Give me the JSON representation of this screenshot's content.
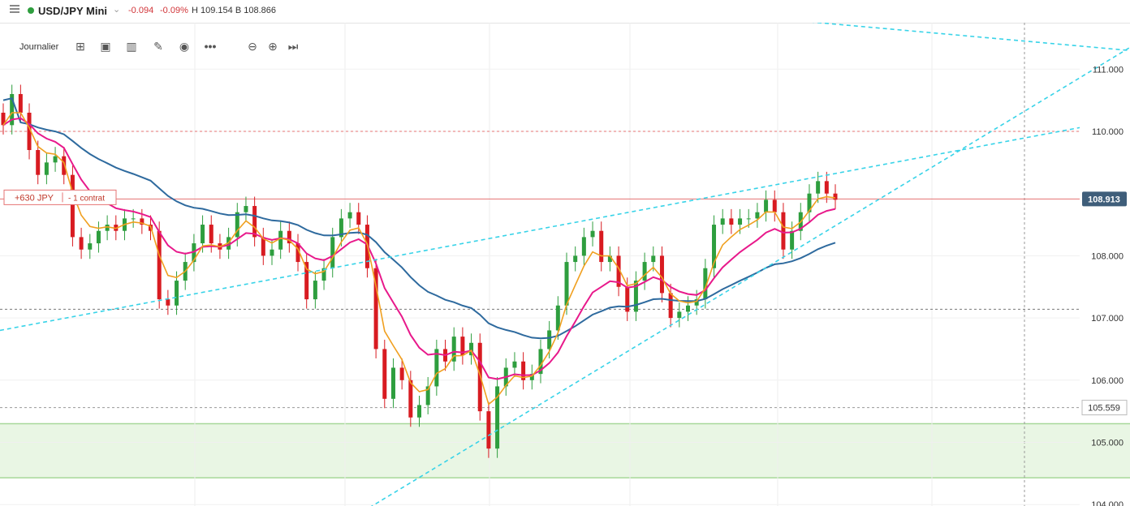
{
  "header": {
    "symbol": "USD/JPY Mini",
    "change": "-0.094",
    "change_pct": "-0.09%",
    "high_low": "H 109.154  B 108.866"
  },
  "toolbar": {
    "period": "Journalier",
    "icons": [
      "crosshair-icon",
      "layout-icon",
      "bars-icon",
      "pencil-icon",
      "eye-icon",
      "more-icon",
      "zoom-out-icon",
      "zoom-in-icon",
      "scroll-end-icon"
    ]
  },
  "position": {
    "pnl": "+630 JPY",
    "size": "- 1 contrat",
    "level": 108.913
  },
  "price_labels": {
    "current": "108.913",
    "support": "105.559"
  },
  "colors": {
    "up": "#2e9e3e",
    "down": "#d81b21",
    "ema_fast": "#f0a020",
    "ema_mid": "#e8198b",
    "ema_slow": "#2e6a9e",
    "trend": "#38d3e8",
    "zone": "#e9f6e4"
  },
  "chart_data": {
    "type": "candlestick",
    "y_axis_ticks": [
      "111.000",
      "110.000",
      "108.000",
      "107.000",
      "106.000",
      "105.000",
      "104.000"
    ],
    "ylim": [
      104.0,
      111.4
    ],
    "horizontal_levels": [
      110.0,
      108.913,
      107.14,
      105.559
    ],
    "support_zone": [
      104.43,
      105.3
    ],
    "candles_close": [
      110.1,
      110.6,
      110.3,
      109.7,
      109.3,
      109.5,
      109.6,
      109.3,
      108.3,
      108.1,
      108.2,
      108.4,
      108.5,
      108.4,
      108.6,
      108.6,
      108.5,
      108.4,
      107.3,
      107.2,
      107.6,
      107.9,
      108.2,
      108.5,
      108.2,
      108.1,
      108.3,
      108.7,
      108.8,
      108.3,
      108.0,
      108.1,
      108.4,
      108.2,
      107.9,
      107.3,
      107.6,
      107.8,
      108.3,
      108.6,
      108.7,
      108.5,
      107.8,
      106.5,
      105.7,
      106.2,
      106.0,
      105.4,
      105.6,
      105.9,
      106.5,
      106.3,
      106.7,
      106.4,
      106.6,
      105.5,
      104.9,
      105.9,
      106.2,
      106.3,
      106.0,
      106.1,
      106.5,
      106.8,
      107.2,
      107.9,
      108.0,
      108.3,
      108.4,
      107.9,
      108.0,
      107.5,
      107.1,
      107.6,
      107.9,
      108.0,
      107.4,
      107.0,
      107.1,
      107.2,
      107.3,
      107.8,
      108.5,
      108.6,
      108.5,
      108.6,
      108.6,
      108.7,
      108.9,
      108.7,
      108.1,
      108.4,
      108.7,
      109.0,
      109.2,
      109.0,
      108.9
    ],
    "ema_fast_last": 108.95,
    "ema_mid_last": 108.75,
    "ema_slow_last": 108.3
  }
}
